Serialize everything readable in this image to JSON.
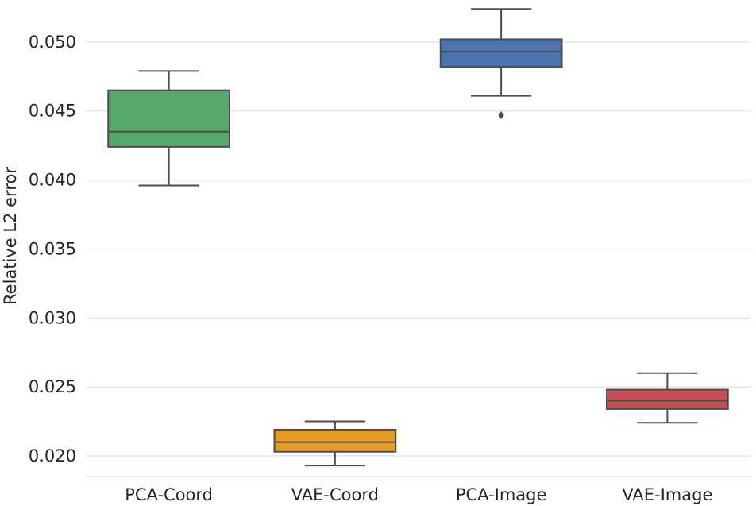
{
  "chart_data": {
    "type": "box",
    "categories": [
      "PCA-Coord",
      "VAE-Coord",
      "PCA-Image",
      "VAE-Image"
    ],
    "ylabel": "Relative L2 error",
    "ylim": [
      0.0185,
      0.0527
    ],
    "yticks": [
      "0.020",
      "0.025",
      "0.030",
      "0.035",
      "0.040",
      "0.045",
      "0.050"
    ],
    "ytick_values": [
      0.02,
      0.025,
      0.03,
      0.035,
      0.04,
      0.045,
      0.05
    ],
    "grid": "horizontal",
    "boxes": [
      {
        "category": "PCA-Coord",
        "whisker_low": 0.0396,
        "q1": 0.0424,
        "median": 0.0435,
        "q3": 0.0465,
        "whisker_high": 0.0479,
        "outliers": [],
        "color": "#55a868"
      },
      {
        "category": "VAE-Coord",
        "whisker_low": 0.0193,
        "q1": 0.0203,
        "median": 0.021,
        "q3": 0.0219,
        "whisker_high": 0.0225,
        "outliers": [],
        "color": "#e59c22"
      },
      {
        "category": "PCA-Image",
        "whisker_low": 0.0461,
        "q1": 0.0482,
        "median": 0.0493,
        "q3": 0.0502,
        "whisker_high": 0.0524,
        "outliers": [
          0.0447
        ],
        "color": "#4c72b0"
      },
      {
        "category": "VAE-Image",
        "whisker_low": 0.0224,
        "q1": 0.0234,
        "median": 0.024,
        "q3": 0.0248,
        "whisker_high": 0.026,
        "outliers": [],
        "color": "#c44e52"
      }
    ]
  }
}
